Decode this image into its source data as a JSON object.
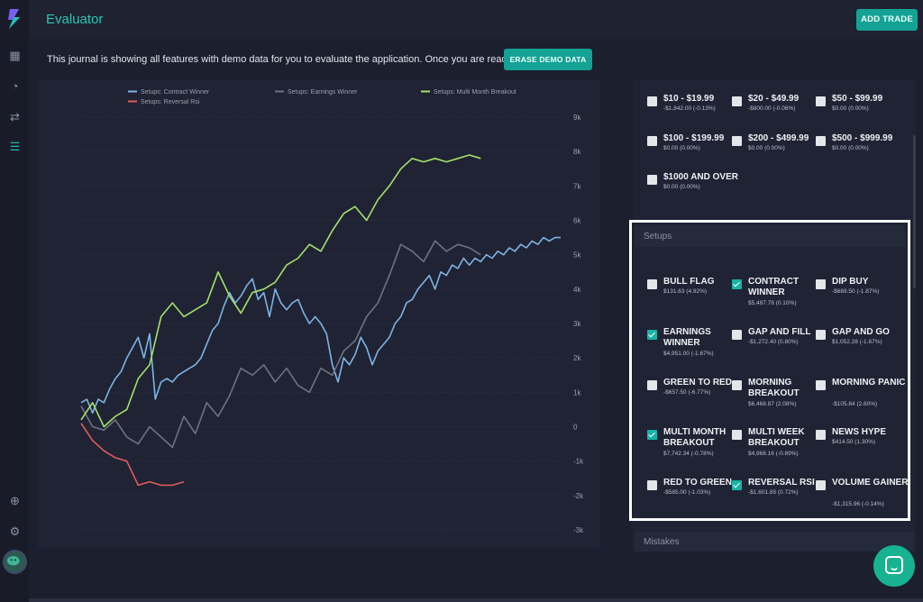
{
  "app": {
    "title": "Evaluator",
    "add_trade_label": "ADD TRADE",
    "accent": "#13a294"
  },
  "notice": {
    "text": "This journal is showing all features with demo data for you to evaluate the application. Once you are ready",
    "erase_label": "ERASE DEMO DATA"
  },
  "sidebar": {
    "icons": [
      "dashboard-icon",
      "reports-icon",
      "trades-icon",
      "filters-icon",
      "add-icon",
      "settings-icon"
    ]
  },
  "price_filters": [
    {
      "label": "$10 - $19.99",
      "sub": "-$1,842.00 (-0.13%)",
      "checked": false
    },
    {
      "label": "$20 - $49.99",
      "sub": "-$800.00 (-0.06%)",
      "checked": false
    },
    {
      "label": "$50 - $99.99",
      "sub": "$0.00 (0.00%)",
      "checked": false
    },
    {
      "label": "$100 - $199.99",
      "sub": "$0.00 (0.00%)",
      "checked": false
    },
    {
      "label": "$200 - $499.99",
      "sub": "$0.00 (0.00%)",
      "checked": false
    },
    {
      "label": "$500 - $999.99",
      "sub": "$0.00 (0.00%)",
      "checked": false
    },
    {
      "label": "$1000 AND OVER",
      "sub": "$0.00 (0.00%)",
      "checked": false
    }
  ],
  "setups": {
    "title": "Setups",
    "items": [
      {
        "label": "BULL FLAG",
        "sub": "$131.63 (4.92%)",
        "checked": false
      },
      {
        "label": "CONTRACT WINNER",
        "sub": "$5,487.78 (0.10%)",
        "checked": true
      },
      {
        "label": "DIP BUY",
        "sub": "-$689.50 (-1.87%)",
        "checked": false
      },
      {
        "label": "EARNINGS WINNER",
        "sub": "$4,951.00 (-1.67%)",
        "checked": true
      },
      {
        "label": "GAP AND FILL",
        "sub": "-$1,272.40 (0.80%)",
        "checked": false
      },
      {
        "label": "GAP AND GO",
        "sub": "$1,052.28 (-1.67%)",
        "checked": false
      },
      {
        "label": "GREEN TO RED",
        "sub": "-$657.50 (-6.77%)",
        "checked": false
      },
      {
        "label": "MORNING BREAKOUT",
        "sub": "$6,468.87 (2.08%)",
        "checked": false
      },
      {
        "label": "MORNING PANIC",
        "sub": "-$105.84 (2.60%)",
        "checked": false
      },
      {
        "label": "MULTI MONTH BREAKOUT",
        "sub": "$7,742.34 (-0.78%)",
        "checked": true
      },
      {
        "label": "MULTI WEEK BREAKOUT",
        "sub": "$4,968.16 (-0.89%)",
        "checked": false
      },
      {
        "label": "NEWS HYPE",
        "sub": "$414.50 (1.30%)",
        "checked": false
      },
      {
        "label": "RED TO GREEN",
        "sub": "-$585.00 (-1.03%)",
        "checked": false
      },
      {
        "label": "REVERSAL RSI",
        "sub": "-$1,601.85 (0.72%)",
        "checked": true
      },
      {
        "label": "VOLUME GAINER",
        "sub": "-$1,315.96 (-0.14%)",
        "checked": false
      }
    ]
  },
  "mistakes": {
    "title": "Mistakes"
  },
  "chart_data": {
    "type": "line",
    "ylim": [
      -3000,
      9000
    ],
    "yticks": [
      9000,
      8000,
      7000,
      6000,
      5000,
      4000,
      3000,
      2000,
      1000,
      0,
      -1000,
      -2000,
      -3000
    ],
    "ytick_labels": [
      "9k",
      "8k",
      "7k",
      "6k",
      "5k",
      "4k",
      "3k",
      "2k",
      "1k",
      "0",
      "-1k",
      "-2k",
      "-3k"
    ],
    "grid": true,
    "legend_position": "top",
    "series": [
      {
        "name": "Setups: Contract Winner",
        "color": "#7fb3e6",
        "x": [
          0,
          1,
          2,
          3,
          4,
          5,
          6,
          7,
          8,
          9,
          10,
          11,
          12,
          13,
          14,
          15,
          16,
          17,
          18,
          19,
          20,
          21,
          22,
          23,
          24,
          25,
          26,
          27,
          28,
          29,
          30,
          31,
          32,
          33,
          34,
          35,
          36,
          37,
          38,
          39,
          40,
          41,
          42,
          43,
          44,
          45,
          46,
          47,
          48,
          49,
          50,
          51,
          52,
          53,
          54,
          55,
          56,
          57,
          58,
          59,
          60,
          61,
          62,
          63,
          64,
          65,
          66,
          67,
          68,
          69,
          70,
          71,
          72,
          73,
          74,
          75,
          76,
          77,
          78,
          79,
          80,
          81,
          82,
          83,
          84
        ],
        "y": [
          700,
          800,
          400,
          800,
          700,
          1100,
          1400,
          1600,
          2000,
          2300,
          2600,
          2000,
          2700,
          800,
          1300,
          1400,
          1300,
          1500,
          1600,
          1700,
          1800,
          2000,
          2400,
          2800,
          3000,
          3500,
          3900,
          3600,
          3800,
          4100,
          4300,
          3700,
          3900,
          3200,
          4000,
          3600,
          3400,
          3600,
          3700,
          3300,
          3000,
          3200,
          3000,
          2700,
          1800,
          1300,
          2000,
          1800,
          2100,
          2600,
          2300,
          1800,
          2200,
          2400,
          2600,
          3000,
          3200,
          3600,
          3700,
          4000,
          4200,
          4400,
          4000,
          4500,
          4400,
          4700,
          4600,
          4900,
          4700,
          4900,
          4800,
          5000,
          4900,
          5100,
          5000,
          5200,
          5100,
          5300,
          5200,
          5400,
          5300,
          5500,
          5400,
          5500,
          5500
        ]
      },
      {
        "name": "Setups: Earnings Winner",
        "color": "#6e7280",
        "x": [
          0,
          2,
          4,
          6,
          8,
          10,
          12,
          14,
          16,
          18,
          20,
          22,
          24,
          26,
          28,
          30,
          32,
          34,
          36,
          38,
          40,
          42,
          44,
          46,
          48,
          50,
          52,
          54,
          56,
          58,
          60,
          62,
          64,
          66,
          68,
          70
        ],
        "y": [
          600,
          0,
          -100,
          200,
          -300,
          -500,
          0,
          -300,
          -600,
          300,
          -200,
          700,
          300,
          900,
          1700,
          1500,
          1800,
          1300,
          1700,
          1200,
          1000,
          1700,
          1500,
          2200,
          2500,
          3200,
          3600,
          4400,
          5300,
          5100,
          4800,
          5400,
          5100,
          5300,
          5200,
          5000
        ]
      },
      {
        "name": "Setups: Multi Month Breakout",
        "color": "#a6e16a",
        "x": [
          0,
          2,
          4,
          6,
          8,
          10,
          12,
          14,
          16,
          18,
          20,
          22,
          24,
          26,
          28,
          30,
          32,
          34,
          36,
          38,
          40,
          42,
          44,
          46,
          48,
          50,
          52,
          54,
          56,
          58,
          60,
          62,
          64,
          66,
          68,
          70
        ],
        "y": [
          200,
          700,
          0,
          300,
          500,
          1400,
          1800,
          3200,
          3600,
          3200,
          3400,
          3600,
          4500,
          3800,
          3300,
          3900,
          4000,
          4200,
          4700,
          4900,
          5300,
          5100,
          5700,
          6200,
          6400,
          6000,
          6600,
          7000,
          7500,
          7800,
          7700,
          7800,
          7700,
          7800,
          7900,
          7800
        ]
      },
      {
        "name": "Setups: Reversal Rsi",
        "color": "#e25b5b",
        "x": [
          0,
          2,
          4,
          6,
          8,
          10,
          12,
          14,
          16,
          18
        ],
        "y": [
          100,
          -400,
          -700,
          -900,
          -1000,
          -1700,
          -1600,
          -1700,
          -1700,
          -1600
        ]
      }
    ]
  }
}
